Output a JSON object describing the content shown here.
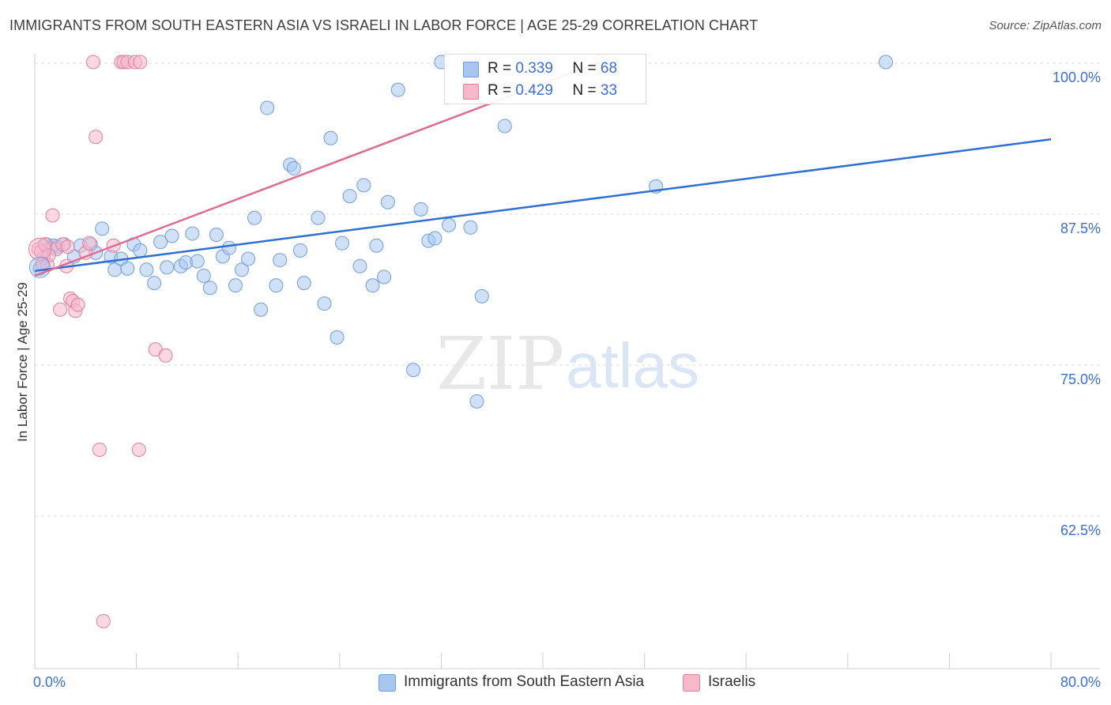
{
  "header": {
    "title": "IMMIGRANTS FROM SOUTH EASTERN ASIA VS ISRAELI IN LABOR FORCE | AGE 25-29 CORRELATION CHART",
    "source": "Source: ZipAtlas.com"
  },
  "watermark": {
    "zip": "ZIP",
    "atlas": "atlas"
  },
  "stats": [
    {
      "r_label": "R =",
      "r_value": "0.339",
      "n_label": "N =",
      "n_value": "68",
      "color": "#a9c6f0"
    },
    {
      "r_label": "R =",
      "r_value": "0.429",
      "n_label": "N =",
      "n_value": "33",
      "color": "#f7b8ca"
    }
  ],
  "legend": [
    {
      "label": "Immigrants from South Eastern Asia",
      "color": "#a9c6f0"
    },
    {
      "label": "Israelis",
      "color": "#f7b8ca"
    }
  ],
  "chart_data": {
    "type": "scatter",
    "title": "IMMIGRANTS FROM SOUTH EASTERN ASIA VS ISRAELI IN LABOR FORCE | AGE 25-29 CORRELATION CHART",
    "xlabel": "",
    "ylabel": "In Labor Force | Age 25-29",
    "xlim": [
      0,
      80
    ],
    "ylim": [
      50,
      100
    ],
    "x_tick_labels": [
      "0.0%",
      "80.0%"
    ],
    "y_ticks": [
      62.5,
      75.0,
      87.5,
      100.0
    ],
    "y_tick_labels": [
      "62.5%",
      "75.0%",
      "87.5%",
      "100.0%"
    ],
    "grid": true,
    "legend_position": "bottom",
    "series": [
      {
        "name": "Immigrants from South Eastern Asia",
        "color": "#6f9ee0",
        "fill": "#a9c6f0",
        "trend": {
          "x": [
            0,
            80
          ],
          "y": [
            82.8,
            93.7
          ],
          "color": "#2f6fcf"
        },
        "points": [
          [
            0.4,
            83.0
          ],
          [
            0.9,
            85.0
          ],
          [
            1.2,
            84.7
          ],
          [
            1.8,
            84.8
          ],
          [
            2.3,
            85.0
          ],
          [
            3.1,
            84.0
          ],
          [
            3.6,
            84.9
          ],
          [
            4.4,
            85.0
          ],
          [
            4.8,
            84.3
          ],
          [
            5.3,
            86.3
          ],
          [
            6.0,
            84.0
          ],
          [
            6.3,
            82.9
          ],
          [
            6.8,
            83.8
          ],
          [
            7.3,
            83.0
          ],
          [
            7.8,
            85.0
          ],
          [
            8.3,
            84.5
          ],
          [
            8.8,
            82.9
          ],
          [
            9.4,
            81.8
          ],
          [
            9.9,
            85.2
          ],
          [
            10.4,
            83.1
          ],
          [
            10.8,
            85.7
          ],
          [
            11.5,
            83.2
          ],
          [
            11.9,
            83.5
          ],
          [
            12.4,
            85.9
          ],
          [
            12.8,
            83.6
          ],
          [
            13.3,
            82.4
          ],
          [
            13.8,
            81.4
          ],
          [
            14.3,
            85.8
          ],
          [
            14.8,
            84.0
          ],
          [
            15.3,
            84.7
          ],
          [
            15.8,
            81.6
          ],
          [
            16.3,
            82.9
          ],
          [
            16.8,
            83.8
          ],
          [
            17.3,
            87.2
          ],
          [
            17.8,
            79.6
          ],
          [
            18.3,
            96.3
          ],
          [
            19.0,
            81.6
          ],
          [
            19.3,
            83.7
          ],
          [
            20.1,
            91.6
          ],
          [
            20.4,
            91.3
          ],
          [
            20.9,
            84.5
          ],
          [
            21.2,
            81.8
          ],
          [
            22.3,
            87.2
          ],
          [
            22.8,
            80.1
          ],
          [
            23.3,
            93.8
          ],
          [
            23.8,
            77.3
          ],
          [
            24.2,
            85.1
          ],
          [
            24.8,
            89.0
          ],
          [
            25.6,
            83.2
          ],
          [
            25.9,
            89.9
          ],
          [
            26.6,
            81.6
          ],
          [
            26.9,
            84.9
          ],
          [
            27.5,
            82.3
          ],
          [
            27.8,
            88.5
          ],
          [
            28.6,
            97.8
          ],
          [
            29.8,
            74.6
          ],
          [
            30.4,
            87.9
          ],
          [
            31.0,
            85.3
          ],
          [
            31.5,
            85.5
          ],
          [
            32.0,
            100.1
          ],
          [
            32.6,
            86.6
          ],
          [
            34.3,
            86.4
          ],
          [
            34.8,
            72.0
          ],
          [
            35.2,
            80.7
          ],
          [
            37.0,
            94.8
          ],
          [
            48.9,
            89.8
          ],
          [
            67.0,
            100.1
          ],
          [
            1.5,
            84.9
          ]
        ]
      },
      {
        "name": "Israelis",
        "color": "#e57ea0",
        "fill": "#f7b8ca",
        "trend": {
          "x": [
            0,
            44.5
          ],
          "y": [
            82.4,
            100.1
          ],
          "color": "#e06b94"
        },
        "points": [
          [
            0.3,
            84.6
          ],
          [
            0.7,
            83.9
          ],
          [
            1.0,
            83.3
          ],
          [
            1.4,
            87.4
          ],
          [
            1.7,
            84.6
          ],
          [
            2.2,
            85.0
          ],
          [
            2.5,
            83.2
          ],
          [
            2.0,
            79.6
          ],
          [
            2.8,
            80.5
          ],
          [
            3.0,
            80.3
          ],
          [
            3.2,
            79.5
          ],
          [
            3.4,
            80.0
          ],
          [
            4.0,
            84.3
          ],
          [
            4.3,
            85.1
          ],
          [
            4.6,
            100.1
          ],
          [
            4.8,
            93.9
          ],
          [
            5.1,
            68.0
          ],
          [
            5.4,
            53.8
          ],
          [
            6.2,
            84.9
          ],
          [
            6.8,
            100.1
          ],
          [
            7.0,
            100.1
          ],
          [
            7.3,
            100.1
          ],
          [
            7.9,
            100.1
          ],
          [
            8.3,
            100.1
          ],
          [
            8.2,
            68.0
          ],
          [
            9.5,
            76.3
          ],
          [
            10.3,
            75.8
          ],
          [
            0.5,
            84.4
          ],
          [
            0.8,
            85.0
          ],
          [
            1.1,
            84.1
          ],
          [
            0.6,
            83.4
          ],
          [
            2.6,
            84.8
          ],
          [
            44.4,
            100.1
          ]
        ]
      }
    ]
  }
}
